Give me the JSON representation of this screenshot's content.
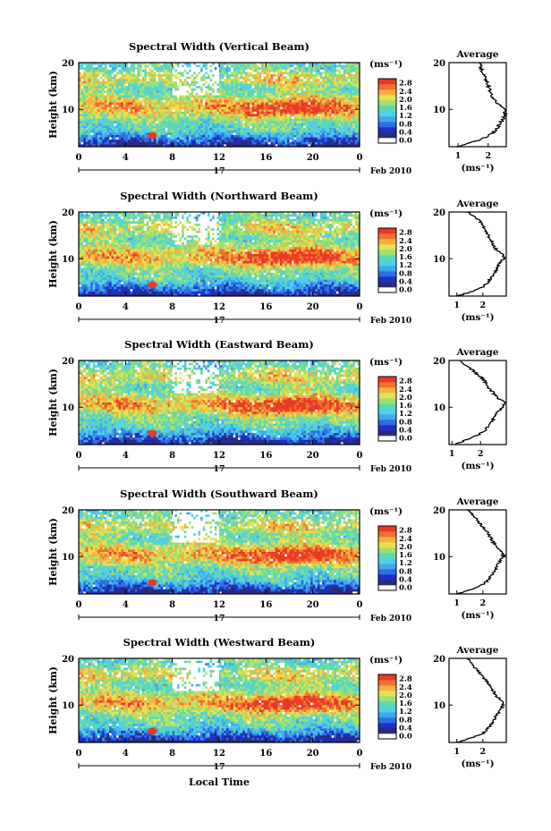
{
  "figure": {
    "xlabel": "Local Time",
    "day_label": "17",
    "date_label": "Feb 2010",
    "height_label": "Height (km)",
    "unit_label": "(ms⁻¹)",
    "avg_title": "Average",
    "avg_xlabel": "(ms⁻¹)"
  },
  "colors": {
    "scale": [
      "#ffffff",
      "#2a2a7a",
      "#1e30c8",
      "#2f6fe6",
      "#3fa8ee",
      "#4fd0e8",
      "#5fd8b0",
      "#9fe070",
      "#e8e050",
      "#f5b040",
      "#f07030",
      "#e83a25"
    ]
  },
  "chart_data": [
    {
      "type": "heatmap",
      "title": "Spectral Width (Vertical Beam)",
      "x_ticks": [
        "0",
        "4",
        "8",
        "12",
        "16",
        "20",
        "0"
      ],
      "y_ticks": [
        "20",
        "10"
      ],
      "xlim": [
        0,
        24
      ],
      "ylim": [
        2,
        20
      ],
      "colorbar_ticks": [
        "2.8",
        "2.4",
        "2.0",
        "1.6",
        "1.2",
        "0.8",
        "0.4",
        "0.0"
      ],
      "colorbar_range": [
        0,
        3.0
      ],
      "avg_profile": {
        "x_ticks": [
          "1",
          "2"
        ],
        "xlim": [
          0.7,
          2.6
        ],
        "height": [
          2,
          3,
          4,
          5,
          6,
          7,
          8,
          9,
          10,
          11,
          12,
          13,
          14,
          15,
          16,
          17,
          18,
          19,
          20
        ],
        "value": [
          1.0,
          1.5,
          1.9,
          2.15,
          2.3,
          2.4,
          2.5,
          2.55,
          2.55,
          2.35,
          2.2,
          2.1,
          2.05,
          2.0,
          1.95,
          1.9,
          1.8,
          1.75,
          1.7
        ]
      }
    },
    {
      "type": "heatmap",
      "title": "Spectral Width (Northward Beam)",
      "x_ticks": [
        "0",
        "4",
        "8",
        "12",
        "16",
        "20",
        "0"
      ],
      "y_ticks": [
        "20",
        "10"
      ],
      "xlim": [
        0,
        24
      ],
      "ylim": [
        2,
        20
      ],
      "colorbar_ticks": [
        "2.8",
        "2.4",
        "2.0",
        "1.6",
        "1.2",
        "0.8",
        "0.4",
        "0.0"
      ],
      "colorbar_range": [
        0,
        3.0
      ],
      "avg_profile": {
        "x_ticks": [
          "1",
          "2"
        ],
        "xlim": [
          0.7,
          2.9
        ],
        "height": [
          2,
          3,
          4,
          5,
          6,
          7,
          8,
          9,
          10,
          11,
          12,
          13,
          14,
          15,
          16,
          17,
          18,
          19,
          20
        ],
        "value": [
          1.0,
          1.6,
          2.0,
          2.2,
          2.35,
          2.45,
          2.55,
          2.65,
          2.8,
          2.75,
          2.5,
          2.4,
          2.3,
          2.2,
          2.1,
          2.0,
          1.9,
          1.7,
          1.4
        ]
      }
    },
    {
      "type": "heatmap",
      "title": "Spectral Width (Eastward Beam)",
      "x_ticks": [
        "0",
        "4",
        "8",
        "12",
        "16",
        "20",
        "0"
      ],
      "y_ticks": [
        "20",
        "10"
      ],
      "xlim": [
        0,
        24
      ],
      "ylim": [
        2,
        20
      ],
      "colorbar_ticks": [
        "2.8",
        "2.4",
        "2.0",
        "1.6",
        "1.2",
        "0.8",
        "0.4",
        "0.0"
      ],
      "colorbar_range": [
        0,
        3.0
      ],
      "avg_profile": {
        "x_ticks": [
          "1",
          "2"
        ],
        "xlim": [
          0.9,
          2.9
        ],
        "height": [
          2,
          3,
          4,
          5,
          6,
          7,
          8,
          9,
          10,
          11,
          12,
          13,
          14,
          15,
          16,
          17,
          18,
          19,
          20
        ],
        "value": [
          1.1,
          1.5,
          1.9,
          2.15,
          2.3,
          2.4,
          2.5,
          2.6,
          2.75,
          2.85,
          2.6,
          2.45,
          2.3,
          2.2,
          2.1,
          1.9,
          1.7,
          1.45,
          1.3
        ]
      }
    },
    {
      "type": "heatmap",
      "title": "Spectral Width (Southward Beam)",
      "x_ticks": [
        "0",
        "4",
        "8",
        "12",
        "16",
        "20",
        "0"
      ],
      "y_ticks": [
        "20",
        "10"
      ],
      "xlim": [
        0,
        24
      ],
      "ylim": [
        2,
        20
      ],
      "colorbar_ticks": [
        "2.8",
        "2.4",
        "2.0",
        "1.6",
        "1.2",
        "0.8",
        "0.4",
        "0.0"
      ],
      "colorbar_range": [
        0,
        3.0
      ],
      "avg_profile": {
        "x_ticks": [
          "1",
          "2"
        ],
        "xlim": [
          0.7,
          2.9
        ],
        "height": [
          2,
          3,
          4,
          5,
          6,
          7,
          8,
          9,
          10,
          11,
          12,
          13,
          14,
          15,
          16,
          17,
          18,
          19,
          20
        ],
        "value": [
          1.0,
          1.6,
          2.0,
          2.2,
          2.35,
          2.45,
          2.55,
          2.65,
          2.8,
          2.75,
          2.55,
          2.4,
          2.3,
          2.2,
          2.05,
          1.9,
          1.75,
          1.6,
          1.4
        ]
      }
    },
    {
      "type": "heatmap",
      "title": "Spectral Width (Westward Beam)",
      "x_ticks": [
        "0",
        "4",
        "8",
        "12",
        "16",
        "20",
        "0"
      ],
      "y_ticks": [
        "20",
        "10"
      ],
      "xlim": [
        0,
        24
      ],
      "ylim": [
        2,
        20
      ],
      "colorbar_ticks": [
        "2.8",
        "2.4",
        "2.0",
        "1.6",
        "1.2",
        "0.8",
        "0.4",
        "0.0"
      ],
      "colorbar_range": [
        0,
        3.0
      ],
      "avg_profile": {
        "x_ticks": [
          "1",
          "2"
        ],
        "xlim": [
          0.7,
          2.9
        ],
        "height": [
          2,
          3,
          4,
          5,
          6,
          7,
          8,
          9,
          10,
          11,
          12,
          13,
          14,
          15,
          16,
          17,
          18,
          19,
          20
        ],
        "value": [
          1.0,
          1.6,
          2.0,
          2.2,
          2.35,
          2.45,
          2.55,
          2.65,
          2.8,
          2.75,
          2.5,
          2.4,
          2.3,
          2.15,
          2.0,
          1.85,
          1.7,
          1.55,
          1.4
        ]
      }
    }
  ]
}
